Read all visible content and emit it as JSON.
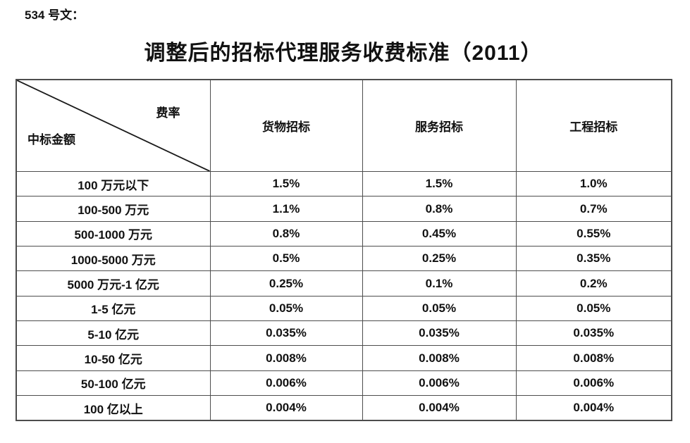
{
  "page": {
    "doc_label": "534 号文：",
    "title": "调整后的招标代理服务收费标准（2011）"
  },
  "table": {
    "corner": {
      "top_right": "费率",
      "bottom_left": "中标金额"
    },
    "columns": [
      "货物招标",
      "服务招标",
      "工程招标"
    ],
    "rows": [
      {
        "label": "100 万元以下",
        "values": [
          "1.5%",
          "1.5%",
          "1.0%"
        ]
      },
      {
        "label": "100-500 万元",
        "values": [
          "1.1%",
          "0.8%",
          "0.7%"
        ]
      },
      {
        "label": "500-1000 万元",
        "values": [
          "0.8%",
          "0.45%",
          "0.55%"
        ]
      },
      {
        "label": "1000-5000 万元",
        "values": [
          "0.5%",
          "0.25%",
          "0.35%"
        ]
      },
      {
        "label": "5000 万元-1 亿元",
        "values": [
          "0.25%",
          "0.1%",
          "0.2%"
        ]
      },
      {
        "label": "1-5 亿元",
        "values": [
          "0.05%",
          "0.05%",
          "0.05%"
        ]
      },
      {
        "label": "5-10 亿元",
        "values": [
          "0.035%",
          "0.035%",
          "0.035%"
        ]
      },
      {
        "label": "10-50 亿元",
        "values": [
          "0.008%",
          "0.008%",
          "0.008%"
        ]
      },
      {
        "label": "50-100 亿元",
        "values": [
          "0.006%",
          "0.006%",
          "0.006%"
        ]
      },
      {
        "label": "100 亿以上",
        "values": [
          "0.004%",
          "0.004%",
          "0.004%"
        ]
      }
    ]
  },
  "colors": {
    "border": "#4d4d4d",
    "diagonal": "#1a1a1a",
    "text": "#111111",
    "background": "#ffffff"
  }
}
